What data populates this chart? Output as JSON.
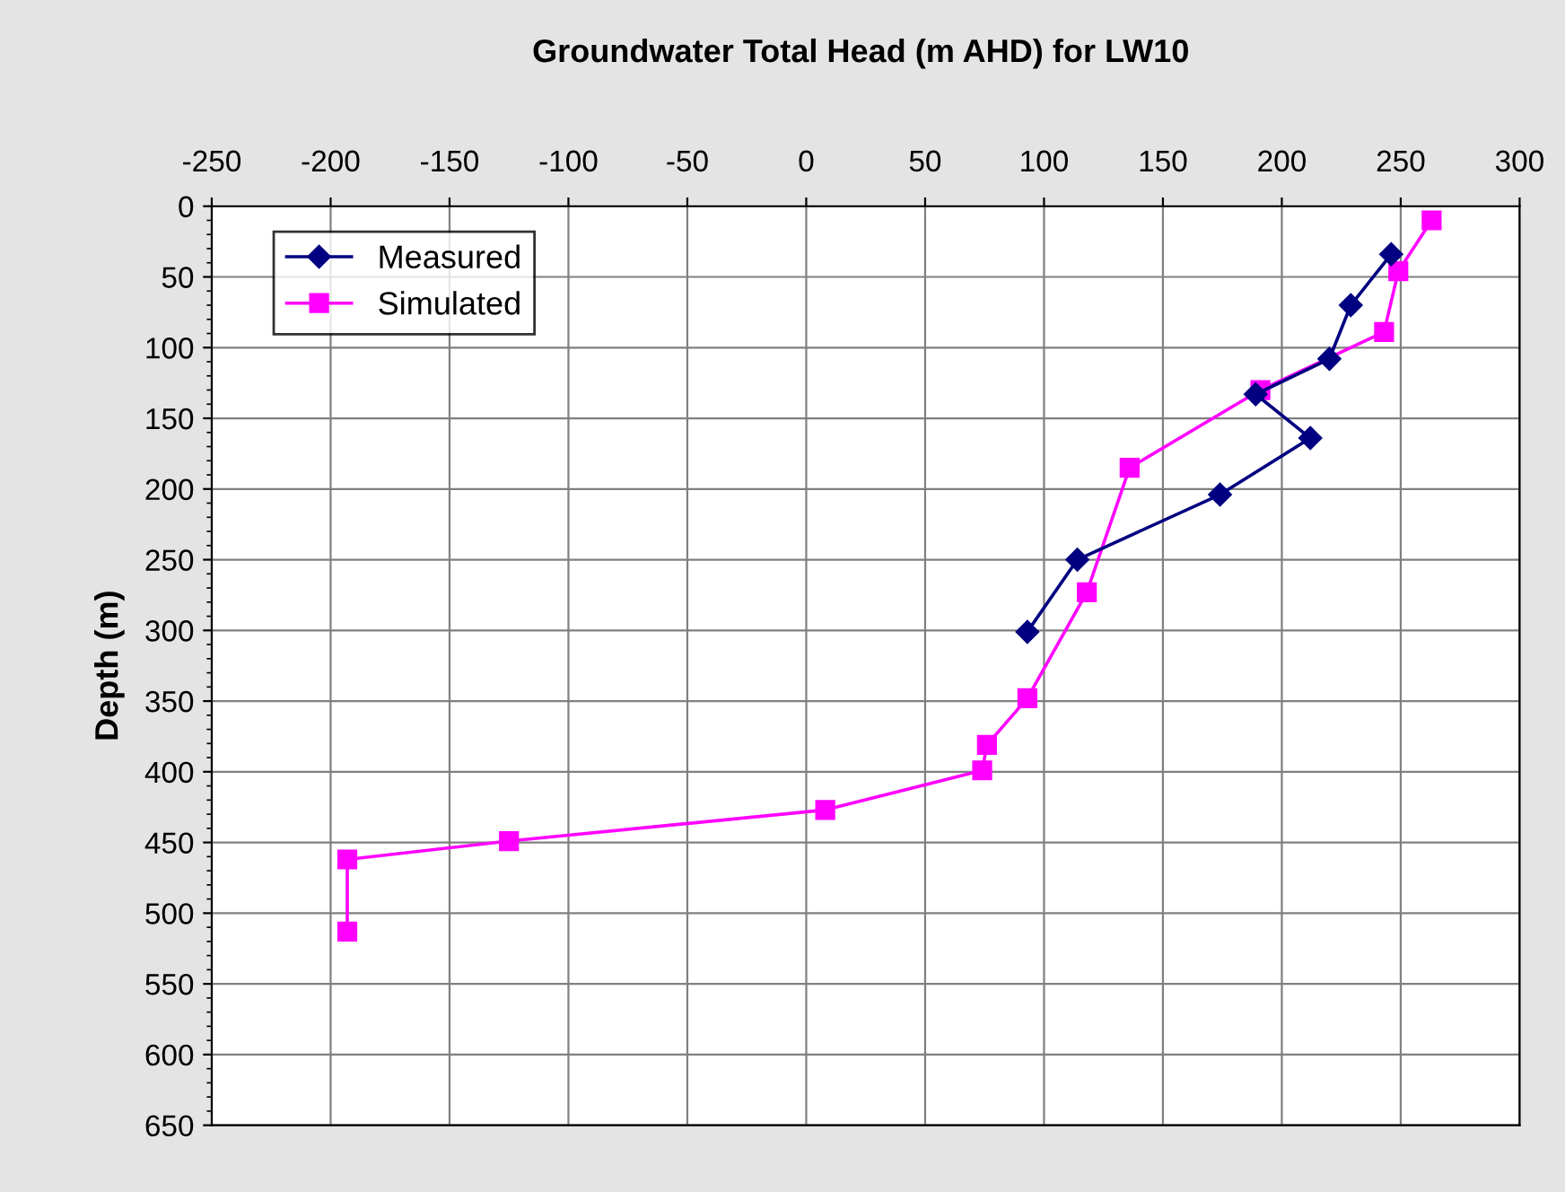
{
  "chart_data": {
    "type": "line",
    "title": "Groundwater Total Head (m AHD) for LW10",
    "ylabel": "Depth (m)",
    "xlim": [
      -250,
      300
    ],
    "xticks": [
      -250,
      -200,
      -150,
      -100,
      -50,
      0,
      50,
      100,
      150,
      200,
      250,
      300
    ],
    "ylim": [
      650,
      0
    ],
    "yticks": [
      0,
      50,
      100,
      150,
      200,
      250,
      300,
      350,
      400,
      450,
      500,
      550,
      600,
      650
    ],
    "grid": true,
    "legend": "top left",
    "line_style": "solid",
    "series": [
      {
        "name": "Measured",
        "color": "#000080",
        "marker": "diamond",
        "x": [
          246,
          229,
          220,
          189,
          212,
          174,
          114,
          93
        ],
        "values": [
          34,
          70,
          108,
          133,
          164,
          204,
          250,
          301
        ]
      },
      {
        "name": "Simulated",
        "color": "#ff00ff",
        "marker": "square",
        "x": [
          263,
          249,
          243,
          191,
          136,
          118,
          93,
          76,
          74,
          8,
          -125,
          -193,
          -193
        ],
        "values": [
          10,
          46,
          89,
          130,
          185,
          273,
          348,
          381,
          399,
          427,
          449,
          462,
          513
        ]
      }
    ]
  }
}
